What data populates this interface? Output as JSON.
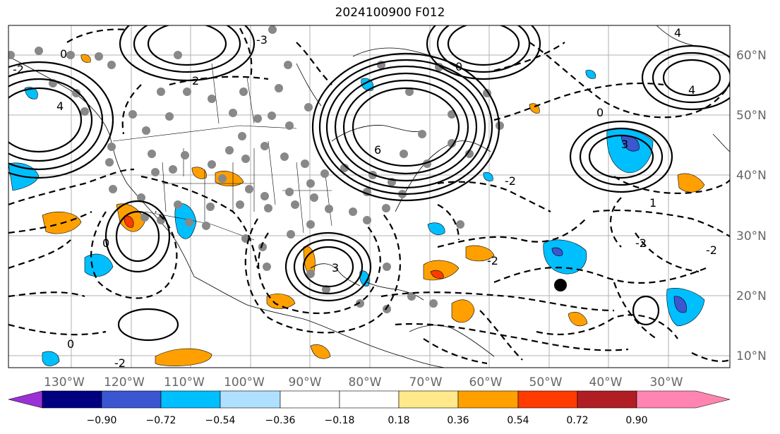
{
  "title": "2024100900 F012",
  "map": {
    "lon_labels": [
      "130°W",
      "120°W",
      "110°W",
      "100°W",
      "90°W",
      "80°W",
      "70°W",
      "60°W",
      "50°W",
      "40°W",
      "30°W"
    ],
    "lat_labels": [
      "60°N",
      "50°N",
      "40°N",
      "30°N",
      "20°N",
      "10°N"
    ]
  },
  "colorbar": {
    "tick_labels": [
      "−0.90",
      "−0.72",
      "−0.54",
      "−0.36",
      "−0.18",
      "0.18",
      "0.36",
      "0.54",
      "0.72",
      "0.90"
    ],
    "colors": [
      "#9b30d6",
      "#000080",
      "#3a56d0",
      "#00bfff",
      "#b0e0ff",
      "#ffffff",
      "#ffe98a",
      "#ffa000",
      "#ff3b00",
      "#b01e23",
      "#ff85b0"
    ]
  },
  "contour_labels": [
    "-2",
    "-1",
    "0",
    "1",
    "2",
    "3",
    "4",
    "-3",
    "-4",
    "6",
    "5"
  ]
}
